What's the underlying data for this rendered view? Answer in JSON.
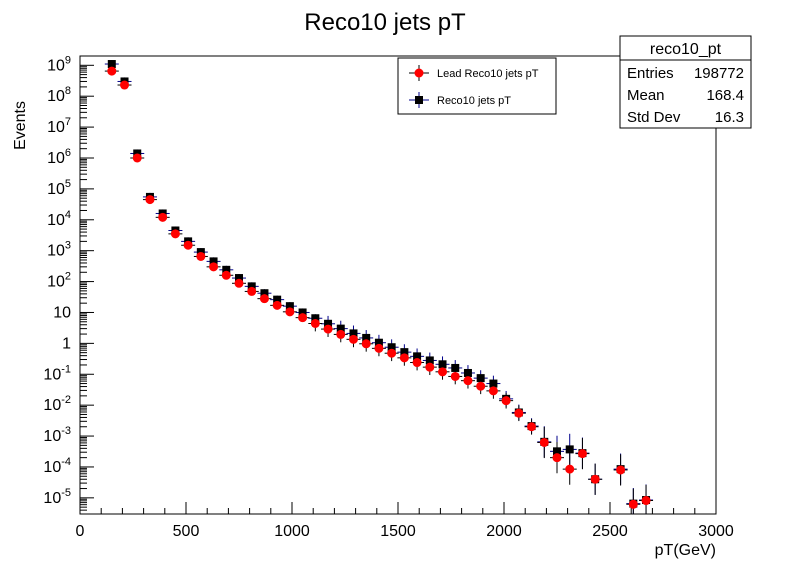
{
  "chart_data": {
    "type": "scatter",
    "title": "Reco10 jets pT",
    "xlabel": "pT(GeV)",
    "ylabel": "Events",
    "xlim": [
      0,
      3000
    ],
    "ylim": [
      3e-06,
      2000000000.0
    ],
    "y_scale": "log",
    "grid": false,
    "legend_position": "top-center-right",
    "x_ticks": [
      "0",
      "500",
      "1000",
      "1500",
      "2000",
      "2500",
      "3000"
    ],
    "y_ticks": [
      {
        "exp": 9,
        "label": "9"
      },
      {
        "exp": 8,
        "label": "8"
      },
      {
        "exp": 7,
        "label": "7"
      },
      {
        "exp": 6,
        "label": "6"
      },
      {
        "exp": 5,
        "label": "5"
      },
      {
        "exp": 4,
        "label": "4"
      },
      {
        "exp": 3,
        "label": "3"
      },
      {
        "exp": 2,
        "label": "2"
      },
      {
        "exp": 1,
        "label": "10"
      },
      {
        "exp": 0,
        "label": "1"
      },
      {
        "exp": -1,
        "label": "-1"
      },
      {
        "exp": -2,
        "label": "-2"
      },
      {
        "exp": -3,
        "label": "-3"
      },
      {
        "exp": -4,
        "label": "-4"
      },
      {
        "exp": -5,
        "label": "-5"
      }
    ],
    "series": [
      {
        "name": "Reco10 jets pT",
        "marker": "square",
        "color": "#000000",
        "points": [
          [
            150,
            1100000000.0
          ],
          [
            210,
            300000000.0
          ],
          [
            270,
            1400000.0
          ],
          [
            330,
            55000.0
          ],
          [
            390,
            16000.0
          ],
          [
            450,
            4500.0
          ],
          [
            510,
            2000.0
          ],
          [
            570,
            900.0
          ],
          [
            630,
            450.0
          ],
          [
            690,
            240.0
          ],
          [
            750,
            130.0
          ],
          [
            810,
            70.0
          ],
          [
            870,
            42.0
          ],
          [
            930,
            26.0
          ],
          [
            990,
            16.0
          ],
          [
            1050,
            10.0
          ],
          [
            1110,
            6.5
          ],
          [
            1170,
            4.3
          ],
          [
            1230,
            3.0
          ],
          [
            1290,
            2.1
          ],
          [
            1350,
            1.5
          ],
          [
            1410,
            1.05
          ],
          [
            1470,
            0.75
          ],
          [
            1530,
            0.52
          ],
          [
            1590,
            0.38
          ],
          [
            1650,
            0.28
          ],
          [
            1710,
            0.21
          ],
          [
            1770,
            0.16
          ],
          [
            1830,
            0.11
          ],
          [
            1890,
            0.075
          ],
          [
            1950,
            0.05
          ],
          [
            2010,
            0.016
          ],
          [
            2070,
            0.0058
          ],
          [
            2130,
            0.0021
          ],
          [
            2190,
            0.00065
          ],
          [
            2250,
            0.00032
          ],
          [
            2310,
            0.00037
          ],
          [
            2370,
            0.00028
          ],
          [
            2430,
            4e-05
          ],
          [
            2550,
            8.5e-05
          ],
          [
            2610,
            6.5e-06
          ],
          [
            2670,
            8.5e-06
          ]
        ]
      },
      {
        "name": "Lead Reco10 jets pT",
        "marker": "circle",
        "color": "#ff0000",
        "points": [
          [
            150,
            650000000.0
          ],
          [
            210,
            230000000.0
          ],
          [
            270,
            1000000.0
          ],
          [
            330,
            45000.0
          ],
          [
            390,
            12000.0
          ],
          [
            450,
            3500.0
          ],
          [
            510,
            1500.0
          ],
          [
            570,
            650.0
          ],
          [
            630,
            300.0
          ],
          [
            690,
            160.0
          ],
          [
            750,
            88.0
          ],
          [
            810,
            48.0
          ],
          [
            870,
            28.0
          ],
          [
            930,
            17.0
          ],
          [
            990,
            10.5
          ],
          [
            1050,
            6.8
          ],
          [
            1110,
            4.4
          ],
          [
            1170,
            2.9
          ],
          [
            1230,
            1.95
          ],
          [
            1290,
            1.35
          ],
          [
            1350,
            0.97
          ],
          [
            1410,
            0.69
          ],
          [
            1470,
            0.48
          ],
          [
            1530,
            0.34
          ],
          [
            1590,
            0.24
          ],
          [
            1650,
            0.17
          ],
          [
            1710,
            0.12
          ],
          [
            1770,
            0.085
          ],
          [
            1830,
            0.062
          ],
          [
            1890,
            0.041
          ],
          [
            1950,
            0.029
          ],
          [
            2010,
            0.014
          ],
          [
            2070,
            0.0055
          ],
          [
            2130,
            0.002
          ],
          [
            2190,
            0.00062
          ],
          [
            2250,
            0.0002
          ],
          [
            2310,
            8.5e-05
          ],
          [
            2370,
            0.00027
          ],
          [
            2430,
            4e-05
          ],
          [
            2550,
            8e-05
          ],
          [
            2610,
            6.2e-06
          ],
          [
            2670,
            8.2e-06
          ]
        ]
      }
    ],
    "stats_box": {
      "title": "reco10_pt",
      "rows": [
        {
          "label": "Entries",
          "value": "198772"
        },
        {
          "label": "Mean",
          "value": "168.4"
        },
        {
          "label": "Std Dev",
          "value": "16.3"
        }
      ]
    }
  }
}
